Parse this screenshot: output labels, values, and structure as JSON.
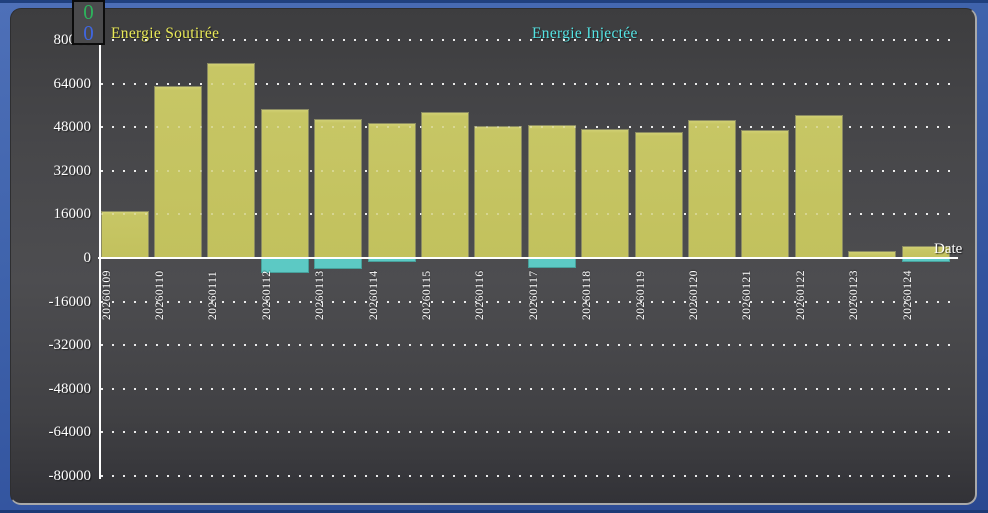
{
  "chart_data": {
    "type": "bar",
    "title": "",
    "xlabel": "Date",
    "ylabel": "",
    "ylim": [
      -80000,
      80000
    ],
    "ytick_step": 16000,
    "yticks": [
      80000,
      64000,
      48000,
      32000,
      16000,
      0,
      -16000,
      -32000,
      -48000,
      -64000,
      -80000
    ],
    "grid": "dotted-horizontal",
    "legend_position": "top",
    "categories": [
      "20260109",
      "20260110",
      "20260111",
      "20260112",
      "20260113",
      "20260114",
      "20260115",
      "20260116",
      "20260117",
      "20260118",
      "20260119",
      "20260120",
      "20260121",
      "20260122",
      "20260123",
      "20260124"
    ],
    "series": [
      {
        "name": "Energie Soutirée",
        "color": "#c6c564",
        "legend_color": "#e9e957",
        "values": [
          17200,
          63000,
          71500,
          54700,
          50900,
          49600,
          53700,
          48300,
          48900,
          47400,
          46300,
          50700,
          47000,
          52500,
          2600,
          4400
        ]
      },
      {
        "name": "Energie Injectée",
        "color": "#5cc9c4",
        "legend_color": "#55e3e3",
        "values": [
          0,
          0,
          0,
          -5100,
          -3700,
          -1100,
          0,
          0,
          -3300,
          0,
          0,
          0,
          0,
          0,
          0,
          -1000
        ]
      }
    ]
  },
  "readout": {
    "values": [
      "0",
      "0"
    ],
    "colors": [
      "#2db35c",
      "#4066e0"
    ]
  },
  "colors": {
    "frame_blue": "#3f63ac",
    "panel_gray": "#47474a",
    "axis_white": "#ffffff"
  }
}
